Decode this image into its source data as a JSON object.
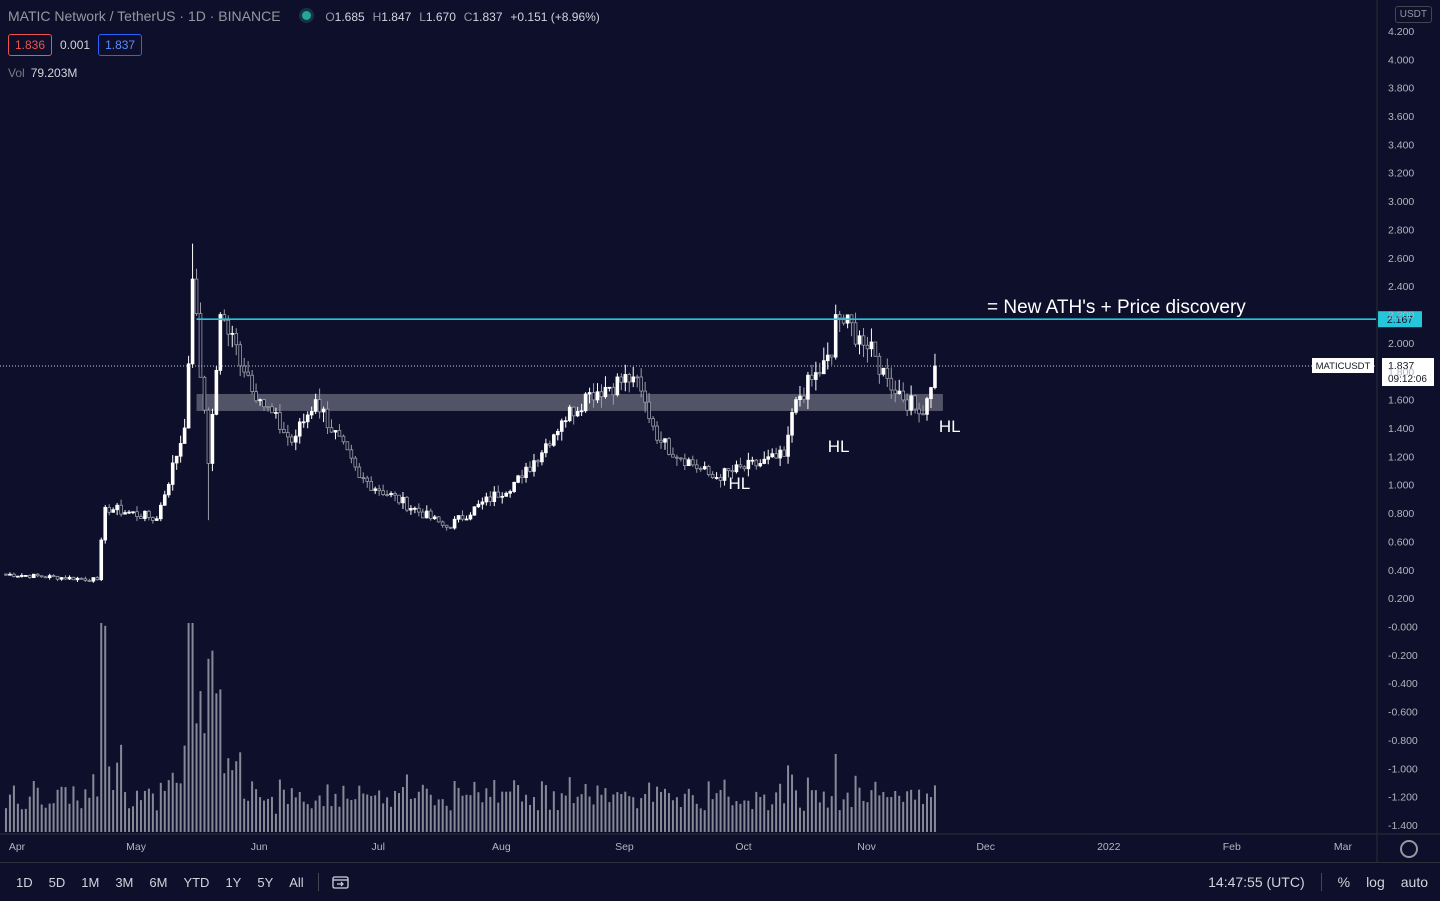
{
  "legend": {
    "symbol": "MATIC Network / TetherUS · 1D · BINANCE",
    "o_label": "O",
    "o": "1.685",
    "h_label": "H",
    "h": "1.847",
    "l_label": "L",
    "l": "1.670",
    "c_label": "C",
    "c": "1.837",
    "change": "+0.151 (+8.96%)",
    "sell": "1.836",
    "spread": "0.001",
    "buy": "1.837",
    "vol_label": "Vol",
    "vol": "79.203M"
  },
  "currency_badge": "USDT",
  "price_tag": {
    "symbol": "MATICUSDT",
    "price": "1.837",
    "countdown": "09:12:06"
  },
  "hline_tag": "2.167",
  "toolbar": {
    "ranges": [
      "1D",
      "5D",
      "1M",
      "3M",
      "6M",
      "YTD",
      "1Y",
      "5Y",
      "All"
    ],
    "time": "14:47:55 (UTC)",
    "pct": "%",
    "log": "log",
    "auto": "auto"
  },
  "colors": {
    "background": "#0e0f2a",
    "candle": "#ffffff",
    "hline": "#26c6da",
    "zone": "#8a8c99",
    "volume": "#b0b3bd",
    "grid": "#1b1d3a",
    "axis_text": "#b2b5be"
  },
  "chart_data": {
    "type": "candlestick",
    "title": "MATIC Network / TetherUS · 1D · BINANCE",
    "yaxis": {
      "ticks": [
        "-1.400",
        "-1.200",
        "-1.000",
        "-0.800",
        "-0.600",
        "-0.400",
        "-0.200",
        "-0.000",
        "0.200",
        "0.400",
        "0.600",
        "0.800",
        "1.000",
        "1.200",
        "1.400",
        "1.600",
        "1.800",
        "2.000",
        "2.200",
        "2.400",
        "2.600",
        "2.800",
        "3.000",
        "3.200",
        "3.400",
        "3.600",
        "3.800",
        "4.000",
        "4.200"
      ],
      "scale": "linear",
      "ylim": [
        -1.45,
        4.25
      ]
    },
    "xaxis": {
      "ticks": [
        "Apr",
        "May",
        "Jun",
        "Jul",
        "Aug",
        "Sep",
        "Oct",
        "Nov",
        "Dec",
        "2022",
        "Feb",
        "Mar"
      ]
    },
    "grid": false,
    "key_points": [
      {
        "x": "2021-04-01",
        "close": 0.37
      },
      {
        "x": "2021-04-25",
        "close": 0.33
      },
      {
        "x": "2021-04-27",
        "close": 0.84
      },
      {
        "x": "2021-05-10",
        "close": 0.76
      },
      {
        "x": "2021-05-17",
        "close": 1.4
      },
      {
        "x": "2021-05-19",
        "close": 2.45,
        "high": 2.7
      },
      {
        "x": "2021-05-23",
        "close": 1.15,
        "low": 0.75
      },
      {
        "x": "2021-05-26",
        "close": 2.2
      },
      {
        "x": "2021-06-05",
        "close": 1.6
      },
      {
        "x": "2021-06-13",
        "close": 1.3
      },
      {
        "x": "2021-06-19",
        "close": 1.6
      },
      {
        "x": "2021-06-30",
        "close": 1.05
      },
      {
        "x": "2021-07-22",
        "close": 0.7
      },
      {
        "x": "2021-08-10",
        "close": 1.05
      },
      {
        "x": "2021-08-20",
        "close": 1.45
      },
      {
        "x": "2021-08-27",
        "close": 1.65
      },
      {
        "x": "2021-09-07",
        "close": 1.76
      },
      {
        "x": "2021-09-14",
        "close": 1.3
      },
      {
        "x": "2021-09-27",
        "close": 1.05
      },
      {
        "x": "2021-10-15",
        "close": 1.2
      },
      {
        "x": "2021-10-18",
        "close": 1.6
      },
      {
        "x": "2021-10-27",
        "close": 1.9
      },
      {
        "x": "2021-10-28",
        "close": 2.2
      },
      {
        "x": "2021-11-03",
        "close": 2.05
      },
      {
        "x": "2021-11-10",
        "close": 1.75
      },
      {
        "x": "2021-11-18",
        "close": 1.5
      },
      {
        "x": "2021-11-21",
        "close": 1.685
      },
      {
        "x": "2021-11-22",
        "close": 1.837
      }
    ],
    "volume_ylim": [
      0,
      215
    ],
    "volume_note_units": "M",
    "hline": {
      "value": 2.167,
      "from": "2021-05-20",
      "label": "= New ATH's + Price discovery"
    },
    "zone": {
      "from": "2021-05-20",
      "to": "2021-11-24",
      "low": 1.52,
      "high": 1.64
    },
    "annotations": [
      {
        "text": "HL",
        "x": "2021-10-01",
        "y": 0.97
      },
      {
        "text": "HL",
        "x": "2021-10-26",
        "y": 1.23
      },
      {
        "text": "HL",
        "x": "2021-11-23",
        "y": 1.37
      }
    ],
    "last_price": 1.837
  }
}
